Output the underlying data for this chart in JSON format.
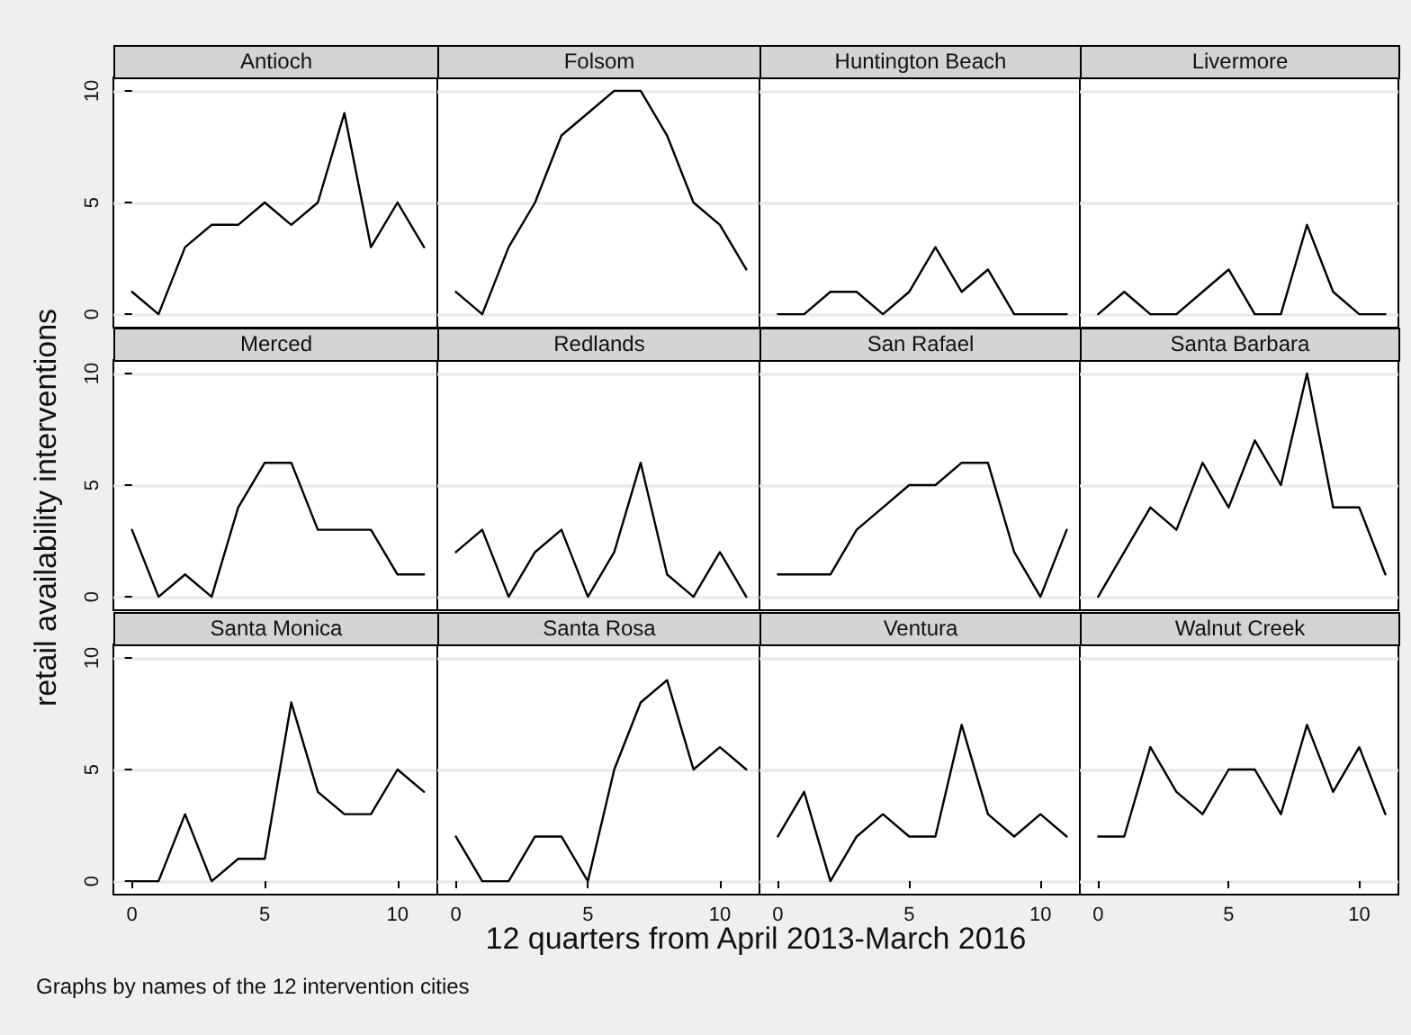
{
  "chart_data": [
    {
      "type": "line",
      "title": "Antioch",
      "x": [
        0,
        1,
        2,
        3,
        4,
        5,
        6,
        7,
        8,
        9,
        10,
        11
      ],
      "values": [
        1,
        0,
        3,
        4,
        4,
        5,
        4,
        5,
        9,
        3,
        5,
        3
      ],
      "color": "#000000",
      "xlim": [
        -0.7,
        11.5
      ],
      "ylim": [
        -0.6,
        10.6
      ],
      "xticks": [
        0,
        5,
        10
      ],
      "yticks": [
        0,
        5,
        10
      ],
      "grid": "y",
      "tick_labels": "y"
    },
    {
      "type": "line",
      "title": "Folsom",
      "x": [
        0,
        1,
        2,
        3,
        4,
        5,
        6,
        7,
        8,
        9,
        10,
        11
      ],
      "values": [
        1,
        0,
        3,
        5,
        8,
        9,
        10,
        10,
        8,
        5,
        4,
        2
      ],
      "color": "#000000",
      "xlim": [
        -0.7,
        11.5
      ],
      "ylim": [
        -0.6,
        10.6
      ],
      "xticks": [
        0,
        5,
        10
      ],
      "yticks": [
        0,
        5,
        10
      ],
      "grid": "y",
      "tick_labels": false
    },
    {
      "type": "line",
      "title": "Huntington Beach",
      "x": [
        0,
        1,
        2,
        3,
        4,
        5,
        6,
        7,
        8,
        9,
        10,
        11
      ],
      "values": [
        0,
        0,
        1,
        1,
        0,
        1,
        3,
        1,
        2,
        0,
        0,
        0
      ],
      "color": "#000000",
      "xlim": [
        -0.7,
        11.5
      ],
      "ylim": [
        -0.6,
        10.6
      ],
      "xticks": [
        0,
        5,
        10
      ],
      "yticks": [
        0,
        5,
        10
      ],
      "grid": "y",
      "tick_labels": false
    },
    {
      "type": "line",
      "title": "Livermore",
      "x": [
        0,
        1,
        2,
        3,
        4,
        5,
        6,
        7,
        8,
        9,
        10,
        11
      ],
      "values": [
        0,
        1,
        0,
        0,
        1,
        2,
        0,
        0,
        4,
        1,
        0,
        0
      ],
      "color": "#000000",
      "xlim": [
        -0.7,
        11.5
      ],
      "ylim": [
        -0.6,
        10.6
      ],
      "xticks": [
        0,
        5,
        10
      ],
      "yticks": [
        0,
        5,
        10
      ],
      "grid": "y",
      "tick_labels": false
    },
    {
      "type": "line",
      "title": "Merced",
      "ylabel": "retail availability interventions",
      "x": [
        0,
        1,
        2,
        3,
        4,
        5,
        6,
        7,
        8,
        9,
        10,
        11
      ],
      "values": [
        3,
        0,
        1,
        0,
        4,
        6,
        6,
        3,
        3,
        3,
        1,
        1
      ],
      "color": "#000000",
      "xlim": [
        -0.7,
        11.5
      ],
      "ylim": [
        -0.6,
        10.6
      ],
      "xticks": [
        0,
        5,
        10
      ],
      "yticks": [
        0,
        5,
        10
      ],
      "grid": "y",
      "tick_labels": "y"
    },
    {
      "type": "line",
      "title": "Redlands",
      "x": [
        0,
        1,
        2,
        3,
        4,
        5,
        6,
        7,
        8,
        9,
        10,
        11
      ],
      "values": [
        2,
        3,
        0,
        2,
        3,
        0,
        2,
        6,
        1,
        0,
        2,
        0
      ],
      "color": "#000000",
      "xlim": [
        -0.7,
        11.5
      ],
      "ylim": [
        -0.6,
        10.6
      ],
      "xticks": [
        0,
        5,
        10
      ],
      "yticks": [
        0,
        5,
        10
      ],
      "grid": "y",
      "tick_labels": false
    },
    {
      "type": "line",
      "title": "San Rafael",
      "x": [
        0,
        1,
        2,
        3,
        4,
        5,
        6,
        7,
        8,
        9,
        10,
        11
      ],
      "values": [
        1,
        1,
        1,
        3,
        4,
        5,
        5,
        6,
        6,
        2,
        0,
        3
      ],
      "color": "#000000",
      "xlim": [
        -0.7,
        11.5
      ],
      "ylim": [
        -0.6,
        10.6
      ],
      "xticks": [
        0,
        5,
        10
      ],
      "yticks": [
        0,
        5,
        10
      ],
      "grid": "y",
      "tick_labels": false
    },
    {
      "type": "line",
      "title": "Santa Barbara",
      "x": [
        0,
        1,
        2,
        3,
        4,
        5,
        6,
        7,
        8,
        9,
        10,
        11
      ],
      "values": [
        0,
        2,
        4,
        3,
        6,
        4,
        7,
        5,
        10,
        4,
        4,
        1
      ],
      "color": "#000000",
      "xlim": [
        -0.7,
        11.5
      ],
      "ylim": [
        -0.6,
        10.6
      ],
      "xticks": [
        0,
        5,
        10
      ],
      "yticks": [
        0,
        5,
        10
      ],
      "grid": "y",
      "tick_labels": false
    },
    {
      "type": "line",
      "title": "Santa Monica",
      "annotations": [
        "Graphs by names of the 12 intervention cities"
      ],
      "x": [
        0,
        1,
        2,
        3,
        4,
        5,
        6,
        7,
        8,
        9,
        10,
        11
      ],
      "values": [
        0,
        0,
        3,
        0,
        1,
        1,
        8,
        4,
        3,
        3,
        5,
        4
      ],
      "color": "#000000",
      "xlim": [
        -0.7,
        11.5
      ],
      "ylim": [
        -0.6,
        10.6
      ],
      "xticks": [
        0,
        5,
        10
      ],
      "yticks": [
        0,
        5,
        10
      ],
      "grid": "y"
    },
    {
      "type": "line",
      "title": "Santa Rosa",
      "xlabel": "12 quarters from April 2013-March 2016",
      "x": [
        0,
        1,
        2,
        3,
        4,
        5,
        6,
        7,
        8,
        9,
        10,
        11
      ],
      "values": [
        2,
        0,
        0,
        2,
        2,
        0,
        5,
        8,
        9,
        5,
        6,
        5
      ],
      "color": "#000000",
      "xlim": [
        -0.7,
        11.5
      ],
      "ylim": [
        -0.6,
        10.6
      ],
      "xticks": [
        0,
        5,
        10
      ],
      "yticks": [
        0,
        5,
        10
      ],
      "grid": "y",
      "tick_labels": "x"
    },
    {
      "type": "line",
      "title": "Ventura",
      "x": [
        0,
        1,
        2,
        3,
        4,
        5,
        6,
        7,
        8,
        9,
        10,
        11
      ],
      "values": [
        2,
        4,
        0,
        2,
        3,
        2,
        2,
        7,
        3,
        2,
        3,
        2
      ],
      "color": "#000000",
      "xlim": [
        -0.7,
        11.5
      ],
      "ylim": [
        -0.6,
        10.6
      ],
      "xticks": [
        0,
        5,
        10
      ],
      "yticks": [
        0,
        5,
        10
      ],
      "grid": "y",
      "tick_labels": "x"
    },
    {
      "type": "line",
      "title": "Walnut Creek",
      "x": [
        0,
        1,
        2,
        3,
        4,
        5,
        6,
        7,
        8,
        9,
        10,
        11
      ],
      "values": [
        2,
        2,
        6,
        4,
        3,
        5,
        5,
        3,
        7,
        4,
        6,
        3
      ],
      "color": "#000000",
      "xlim": [
        -0.7,
        11.5
      ],
      "ylim": [
        -0.6,
        10.6
      ],
      "xticks": [
        0,
        5,
        10
      ],
      "yticks": [
        0,
        5,
        10
      ],
      "grid": "y",
      "tick_labels": "x"
    }
  ]
}
